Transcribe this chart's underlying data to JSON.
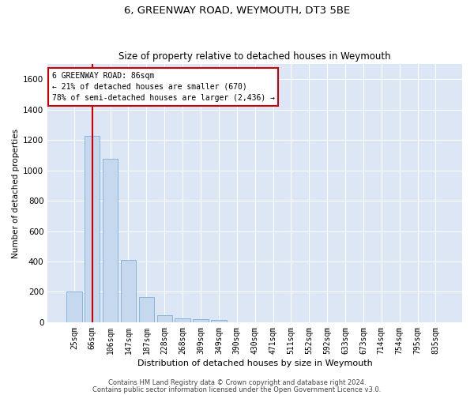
{
  "title": "6, GREENWAY ROAD, WEYMOUTH, DT3 5BE",
  "subtitle": "Size of property relative to detached houses in Weymouth",
  "xlabel": "Distribution of detached houses by size in Weymouth",
  "ylabel": "Number of detached properties",
  "bar_color": "#c5d8ed",
  "bar_edge_color": "#7aafd4",
  "background_color": "#dce6f5",
  "grid_color": "#ffffff",
  "categories": [
    "25sqm",
    "66sqm",
    "106sqm",
    "147sqm",
    "187sqm",
    "228sqm",
    "268sqm",
    "309sqm",
    "349sqm",
    "390sqm",
    "430sqm",
    "471sqm",
    "511sqm",
    "552sqm",
    "592sqm",
    "633sqm",
    "673sqm",
    "714sqm",
    "754sqm",
    "795sqm",
    "835sqm"
  ],
  "values": [
    205,
    1225,
    1075,
    410,
    165,
    45,
    28,
    18,
    15,
    0,
    0,
    0,
    0,
    0,
    0,
    0,
    0,
    0,
    0,
    0,
    0
  ],
  "ylim": [
    0,
    1700
  ],
  "yticks": [
    0,
    200,
    400,
    600,
    800,
    1000,
    1200,
    1400,
    1600
  ],
  "property_bin_index": 1,
  "annotation_line1": "6 GREENWAY ROAD: 86sqm",
  "annotation_line2": "← 21% of detached houses are smaller (670)",
  "annotation_line3": "78% of semi-detached houses are larger (2,436) →",
  "annotation_box_color": "#ffffff",
  "annotation_box_edge": "#cc0000",
  "vline_color": "#cc0000",
  "footer1": "Contains HM Land Registry data © Crown copyright and database right 2024.",
  "footer2": "Contains public sector information licensed under the Open Government Licence v3.0.",
  "fig_width": 6.0,
  "fig_height": 5.0,
  "dpi": 100
}
